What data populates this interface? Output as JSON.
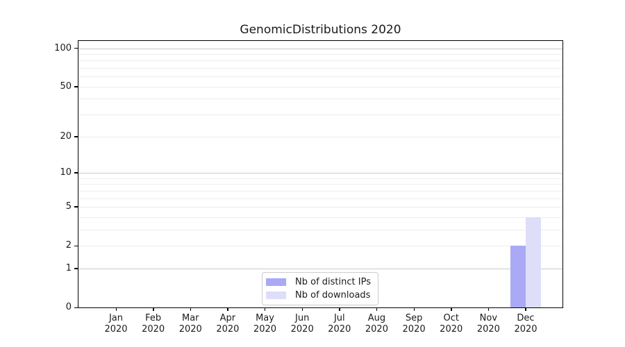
{
  "chart_data": {
    "type": "bar",
    "title": "GenomicDistributions 2020",
    "categories": [
      "Jan",
      "Feb",
      "Mar",
      "Apr",
      "May",
      "Jun",
      "Jul",
      "Aug",
      "Sep",
      "Oct",
      "Nov",
      "Dec"
    ],
    "category_year": "2020",
    "series": [
      {
        "name": "Nb of distinct IPs",
        "color": "#a9a9f6",
        "values": [
          0,
          0,
          0,
          0,
          0,
          0,
          0,
          0,
          0,
          0,
          0,
          2
        ]
      },
      {
        "name": "Nb of downloads",
        "color": "#dedef9",
        "values": [
          0,
          0,
          0,
          0,
          0,
          0,
          0,
          0,
          0,
          0,
          0,
          4
        ]
      }
    ],
    "xlabel": "",
    "ylabel": "",
    "yscale": "log1p",
    "ylim": [
      0,
      114
    ],
    "yticks": [
      {
        "value": 0,
        "label": "0"
      },
      {
        "value": 1,
        "label": "1"
      },
      {
        "value": 2,
        "label": "2"
      },
      {
        "value": 5,
        "label": "5"
      },
      {
        "value": 10,
        "label": "10"
      },
      {
        "value": 20,
        "label": "20"
      },
      {
        "value": 50,
        "label": "50"
      },
      {
        "value": 100,
        "label": "100"
      }
    ],
    "grid": {
      "on": true,
      "major_values": [
        1,
        10,
        100
      ],
      "minor_values": [
        2,
        3,
        4,
        5,
        6,
        7,
        8,
        9,
        20,
        30,
        40,
        50,
        60,
        70,
        80,
        90
      ],
      "major_color": "#c9c9c9",
      "minor_color": "#ededed"
    },
    "legend": {
      "position": "lower center"
    }
  },
  "colors": {
    "background": "#ffffff",
    "axis": "#000000",
    "text": "#1a1a1a",
    "legend_border": "#cccccc"
  }
}
